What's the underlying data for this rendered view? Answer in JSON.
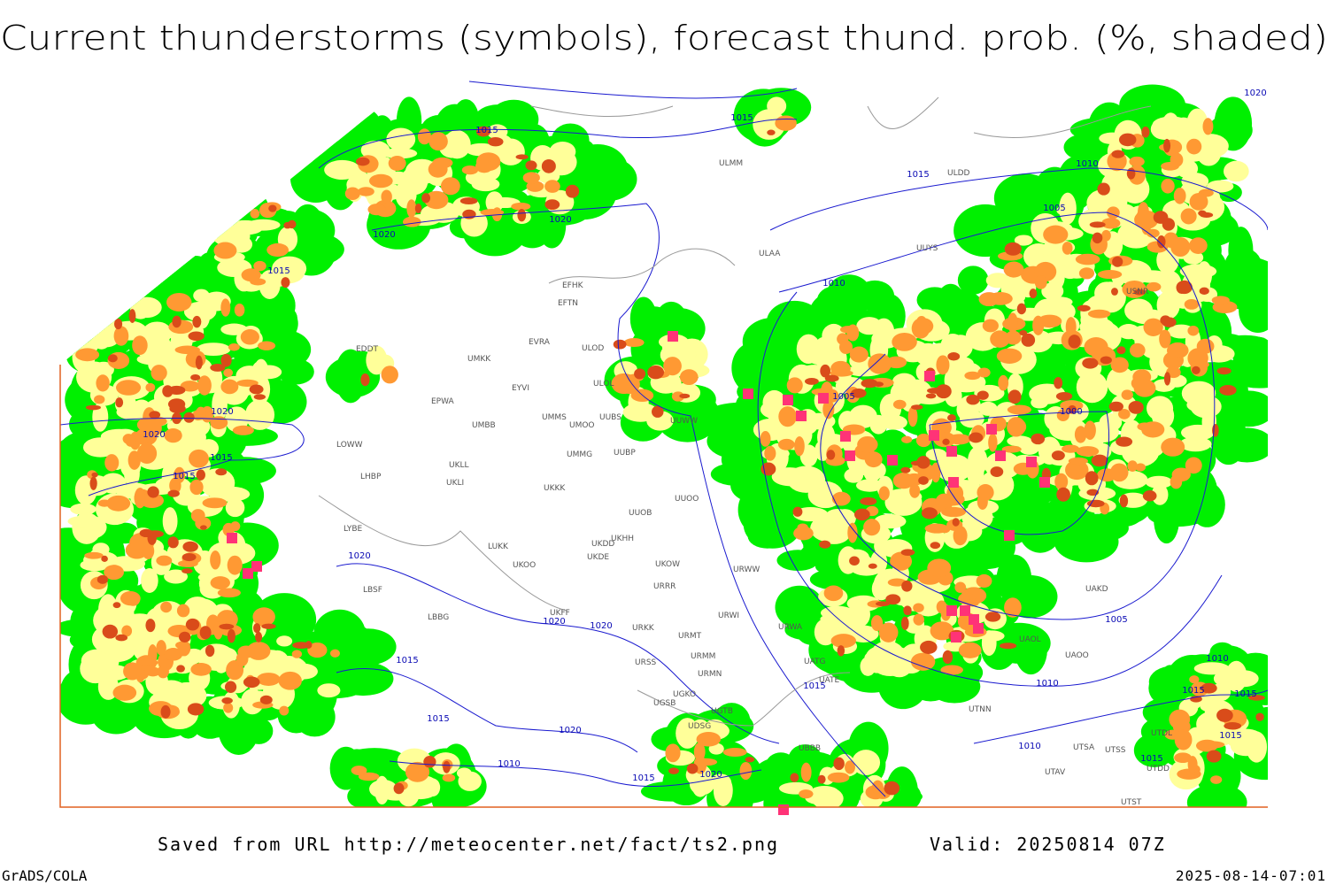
{
  "header": {
    "title": "Current thunderstorms (symbols), forecast thund. prob. (%, shaded)"
  },
  "footer": {
    "source": "Saved from URL http://meteocenter.net/fact/ts2.png",
    "valid": "Valid: 20250814 07Z",
    "software": "GrADS/COLA",
    "timestamp": "2025-08-14-07:01"
  },
  "map": {
    "isobar_labels": [
      1015,
      1015,
      1015,
      1010,
      1005,
      1020,
      1020,
      1015,
      1010,
      1005,
      1000,
      1020,
      1020,
      1015,
      1015,
      1020,
      1020,
      1020,
      1015,
      1015,
      1020,
      1010,
      1015,
      1020,
      1015,
      1010,
      1005,
      1010,
      1015,
      1010,
      1015,
      1015,
      1015,
      1020
    ],
    "stations": [
      "ULMM",
      "ULDD",
      "ULAA",
      "UUYS",
      "EFHK",
      "EFTN",
      "EVRA",
      "ULOD",
      "EDDT",
      "UMKK",
      "ULOL",
      "EYVI",
      "EPWA",
      "UMMS",
      "UMOO",
      "UUBS",
      "UUWW",
      "UMBB",
      "LOWW",
      "UUBP",
      "UKLL",
      "LHBP",
      "UKLI",
      "UMMG",
      "UKKK",
      "UUOO",
      "UUOB",
      "LYBE",
      "UKHH",
      "LUKK",
      "UKDD",
      "UKDE",
      "UKOO",
      "UKOW",
      "URWW",
      "URRR",
      "LBSF",
      "LBBG",
      "UKFF",
      "URKK",
      "URWI",
      "URMT",
      "URWA",
      "URSS",
      "URMM",
      "URMN",
      "UGKO",
      "UGSB",
      "UGTB",
      "UDSG",
      "UBBB",
      "UATE",
      "UATG",
      "UTNN",
      "UAOL",
      "UAOO",
      "UAKD",
      "UTSA",
      "UTSS",
      "UTAV",
      "UTST",
      "UTDD",
      "UTDL",
      "USNR"
    ]
  }
}
